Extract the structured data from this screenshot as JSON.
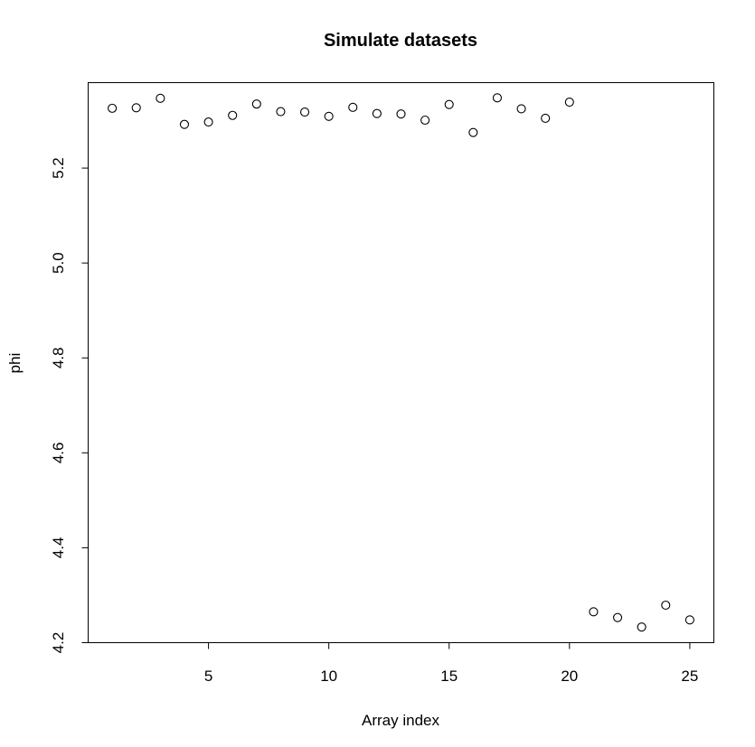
{
  "chart_data": {
    "type": "scatter",
    "title": "Simulate datasets",
    "xlabel": "Array index",
    "ylabel": "phi",
    "xlim": [
      0,
      26
    ],
    "ylim": [
      4.2,
      5.38
    ],
    "xticks": [
      5,
      10,
      15,
      20,
      25
    ],
    "xtick_labels": [
      "5",
      "10",
      "15",
      "20",
      "25"
    ],
    "yticks": [
      4.2,
      4.4,
      4.6,
      4.8,
      5.0,
      5.2
    ],
    "ytick_labels": [
      "4.2",
      "4.4",
      "4.6",
      "4.8",
      "5.0",
      "5.2"
    ],
    "grid": false,
    "legend": "none",
    "marker": "open-circle",
    "x": [
      1,
      2,
      3,
      4,
      5,
      6,
      7,
      8,
      9,
      10,
      11,
      12,
      13,
      14,
      15,
      16,
      17,
      18,
      19,
      20,
      21,
      22,
      23,
      24,
      25
    ],
    "y": [
      5.326,
      5.327,
      5.347,
      5.292,
      5.297,
      5.311,
      5.335,
      5.319,
      5.318,
      5.309,
      5.328,
      5.315,
      5.314,
      5.301,
      5.334,
      5.275,
      5.348,
      5.325,
      5.305,
      5.339,
      4.265,
      4.253,
      4.233,
      4.279,
      4.248
    ]
  }
}
